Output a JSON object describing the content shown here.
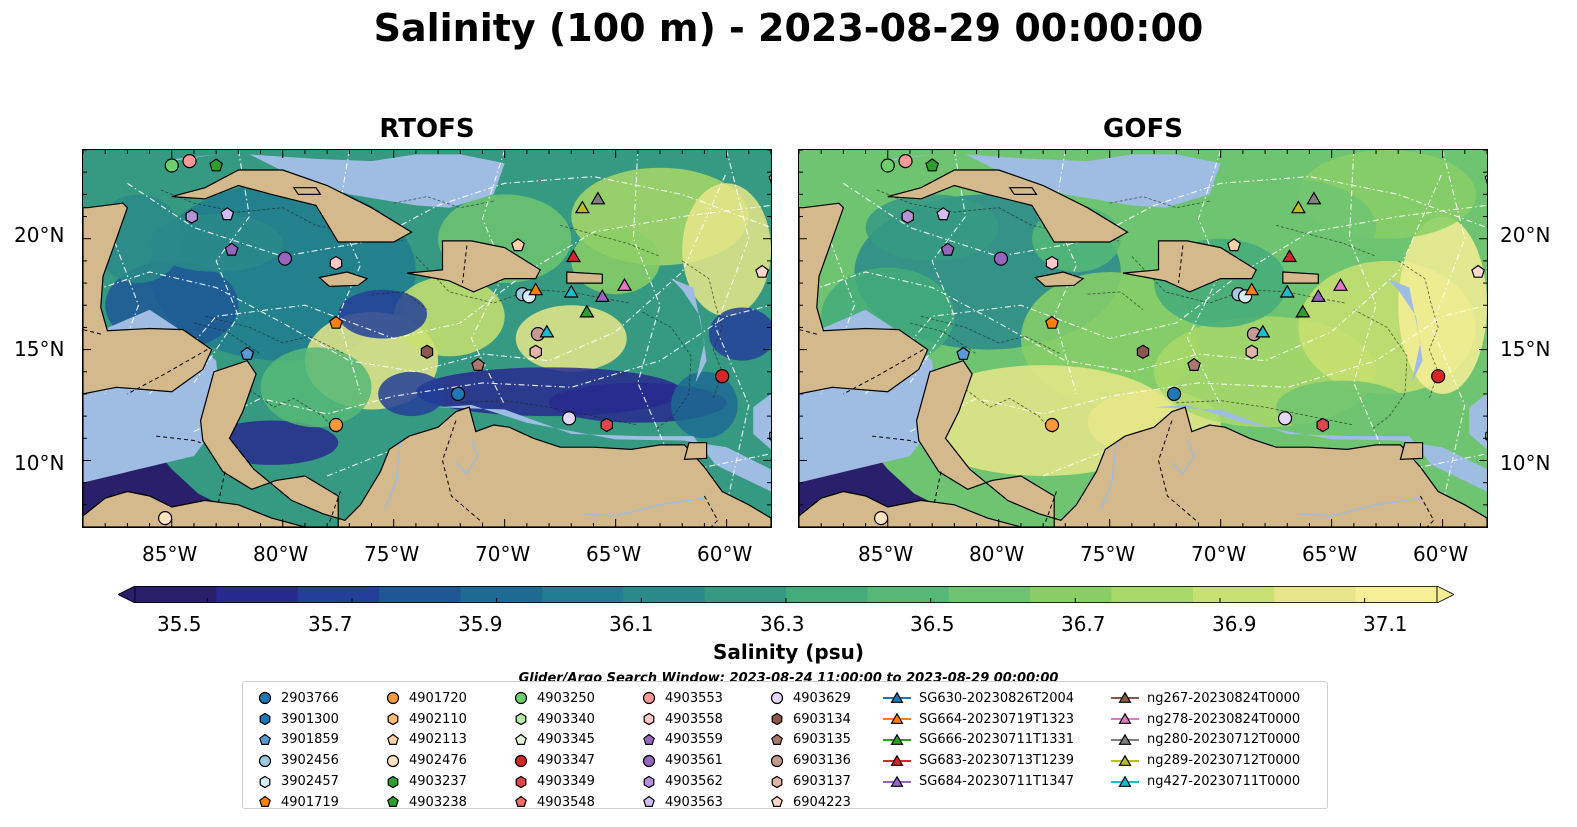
{
  "title": "Salinity (100 m) - 2023-08-29 00:00:00",
  "panels": [
    {
      "title": "RTOFS"
    },
    {
      "title": "GOFS"
    }
  ],
  "map_extent": {
    "lon_min": -89,
    "lon_max": -58,
    "lat_min": 7,
    "lat_max": 24
  },
  "lat_ticks": [
    "20°N",
    "15°N",
    "10°N"
  ],
  "lon_ticks": [
    "85°W",
    "80°W",
    "75°W",
    "70°W",
    "65°W",
    "60°W"
  ],
  "colorbar": {
    "label": "Salinity (psu)",
    "min": 35.4,
    "max": 37.2,
    "extend": "both",
    "ticks": [
      "35.5",
      "35.7",
      "35.9",
      "36.1",
      "36.3",
      "36.5",
      "36.7",
      "36.9",
      "37.1"
    ],
    "colors": [
      "#2a1f6b",
      "#282a8f",
      "#233f99",
      "#1f5796",
      "#1d6a93",
      "#1f7d8f",
      "#2a8a8a",
      "#369a82",
      "#44ab7a",
      "#56b877",
      "#6ec471",
      "#8acf66",
      "#a8d868",
      "#c8e070",
      "#e6e688",
      "#f6ef95"
    ]
  },
  "colors": {
    "land": "#d3b98b",
    "shelf": "#9fbce3",
    "deep_low": "#2a1f6b"
  },
  "search_window": "Glider/Argo Search Window: 2023-08-24 11:00:00 to 2023-08-29 00:00:00",
  "legend": {
    "columns": [
      [
        {
          "label": "2903766",
          "marker": "circle",
          "color": "#1f77b4"
        },
        {
          "label": "3901300",
          "marker": "hexagon",
          "color": "#1f77b4"
        },
        {
          "label": "3901859",
          "marker": "pentagon",
          "color": "#5b9bd5"
        },
        {
          "label": "3902456",
          "marker": "circle",
          "color": "#9ecae1"
        },
        {
          "label": "3902457",
          "marker": "hexagon",
          "color": "#d6ecf6"
        },
        {
          "label": "4901719",
          "marker": "pentagon",
          "color": "#ff7f0e"
        }
      ],
      [
        {
          "label": "4901720",
          "marker": "circle",
          "color": "#ff9b3d"
        },
        {
          "label": "4902110",
          "marker": "hexagon",
          "color": "#ffbb78"
        },
        {
          "label": "4902113",
          "marker": "pentagon",
          "color": "#ffd2a8"
        },
        {
          "label": "4902476",
          "marker": "circle",
          "color": "#ffe4c4"
        },
        {
          "label": "4903237",
          "marker": "hexagon",
          "color": "#2ca02c"
        },
        {
          "label": "4903238",
          "marker": "pentagon",
          "color": "#2ca02c"
        }
      ],
      [
        {
          "label": "4903250",
          "marker": "circle",
          "color": "#6fcf6f"
        },
        {
          "label": "4903340",
          "marker": "hexagon",
          "color": "#b6e8a8"
        },
        {
          "label": "4903345",
          "marker": "pentagon",
          "color": "#e2f7d9"
        },
        {
          "label": "4903347",
          "marker": "circle",
          "color": "#d62728"
        },
        {
          "label": "4903349",
          "marker": "hexagon",
          "color": "#e0474c"
        },
        {
          "label": "4903548",
          "marker": "pentagon",
          "color": "#f06b70"
        }
      ],
      [
        {
          "label": "4903553",
          "marker": "circle",
          "color": "#ff9896"
        },
        {
          "label": "4903558",
          "marker": "hexagon",
          "color": "#ffc8c8"
        },
        {
          "label": "4903559",
          "marker": "pentagon",
          "color": "#9467bd"
        },
        {
          "label": "4903561",
          "marker": "circle",
          "color": "#9467bd"
        },
        {
          "label": "4903562",
          "marker": "hexagon",
          "color": "#b593d6"
        },
        {
          "label": "4903563",
          "marker": "pentagon",
          "color": "#d2bdf0"
        }
      ],
      [
        {
          "label": "4903629",
          "marker": "circle",
          "color": "#e6d6fa"
        },
        {
          "label": "6903134",
          "marker": "hexagon",
          "color": "#8c564b"
        },
        {
          "label": "6903135",
          "marker": "pentagon",
          "color": "#a9786b"
        },
        {
          "label": "6903136",
          "marker": "circle",
          "color": "#c49c94"
        },
        {
          "label": "6903137",
          "marker": "hexagon",
          "color": "#e3b5a8"
        },
        {
          "label": "6904223",
          "marker": "pentagon",
          "color": "#fdd8cc"
        }
      ],
      [
        {
          "label": "SG630-20230826T2004",
          "marker": "triangle",
          "color": "#1f77b4"
        },
        {
          "label": "SG664-20230719T1323",
          "marker": "triangle",
          "color": "#ff7f0e"
        },
        {
          "label": "SG666-20230711T1331",
          "marker": "triangle",
          "color": "#2ca02c"
        },
        {
          "label": "SG683-20230713T1239",
          "marker": "triangle",
          "color": "#d62728"
        },
        {
          "label": "SG684-20230711T1347",
          "marker": "triangle",
          "color": "#9467bd"
        }
      ],
      [
        {
          "label": "ng267-20230824T0000",
          "marker": "triangle",
          "color": "#8c564b"
        },
        {
          "label": "ng278-20230824T0000",
          "marker": "triangle",
          "color": "#e377c2"
        },
        {
          "label": "ng280-20230712T0000",
          "marker": "triangle",
          "color": "#7f7f7f"
        },
        {
          "label": "ng289-20230712T0000",
          "marker": "triangle",
          "color": "#bcbd22"
        },
        {
          "label": "ng427-20230711T0000",
          "marker": "triangle",
          "color": "#17becf"
        }
      ]
    ]
  },
  "observations": [
    {
      "lon": -85,
      "lat": 23.3,
      "marker": "circle",
      "color": "#6fcf6f"
    },
    {
      "lon": -84.2,
      "lat": 23.5,
      "marker": "circle",
      "color": "#ff9896"
    },
    {
      "lon": -83,
      "lat": 23.3,
      "marker": "pentagon",
      "color": "#2ca02c"
    },
    {
      "lon": -84.1,
      "lat": 21,
      "marker": "hexagon",
      "color": "#b593d6"
    },
    {
      "lon": -82.5,
      "lat": 21.1,
      "marker": "pentagon",
      "color": "#d2bdf0"
    },
    {
      "lon": -82.3,
      "lat": 19.5,
      "marker": "pentagon",
      "color": "#9467bd"
    },
    {
      "lon": -79.9,
      "lat": 19.1,
      "marker": "circle",
      "color": "#9467bd"
    },
    {
      "lon": -77.6,
      "lat": 18.9,
      "marker": "hexagon",
      "color": "#ffc8c8"
    },
    {
      "lon": -69.4,
      "lat": 19.7,
      "marker": "pentagon",
      "color": "#ffd2a8"
    },
    {
      "lon": -69.2,
      "lat": 17.5,
      "marker": "circle",
      "color": "#9ecae1"
    },
    {
      "lon": -68.9,
      "lat": 17.4,
      "marker": "circle",
      "color": "#d6ecf6"
    },
    {
      "lon": -77.6,
      "lat": 16.2,
      "marker": "pentagon",
      "color": "#ff7f0e"
    },
    {
      "lon": -81.6,
      "lat": 14.8,
      "marker": "pentagon",
      "color": "#5b9bd5"
    },
    {
      "lon": -73.5,
      "lat": 14.9,
      "marker": "hexagon",
      "color": "#8c564b"
    },
    {
      "lon": -71.2,
      "lat": 14.3,
      "marker": "pentagon",
      "color": "#a9786b"
    },
    {
      "lon": -68.5,
      "lat": 15.7,
      "marker": "circle",
      "color": "#c49c94"
    },
    {
      "lon": -68.6,
      "lat": 14.9,
      "marker": "hexagon",
      "color": "#e3b5a8"
    },
    {
      "lon": -72.1,
      "lat": 13,
      "marker": "circle",
      "color": "#1f77b4"
    },
    {
      "lon": -77.6,
      "lat": 11.6,
      "marker": "circle",
      "color": "#ff9b3d"
    },
    {
      "lon": -67.1,
      "lat": 11.9,
      "marker": "circle",
      "color": "#e6d6fa"
    },
    {
      "lon": -65.4,
      "lat": 11.6,
      "marker": "hexagon",
      "color": "#e0474c"
    },
    {
      "lon": -60.2,
      "lat": 13.8,
      "marker": "circle",
      "color": "#d62728"
    },
    {
      "lon": -57.8,
      "lat": 11.1,
      "marker": "hexagon",
      "color": "#b6e8a8"
    },
    {
      "lon": -57.8,
      "lat": 22.7,
      "marker": "pentagon",
      "color": "#e2f7d9"
    },
    {
      "lon": -58.4,
      "lat": 18.5,
      "marker": "pentagon",
      "color": "#fdd8cc"
    },
    {
      "lon": -85.3,
      "lat": 7.4,
      "marker": "circle",
      "color": "#ffe4c4"
    },
    {
      "lon": -66.5,
      "lat": 21.4,
      "marker": "triangle",
      "color": "#bcbd22"
    },
    {
      "lon": -65.8,
      "lat": 21.8,
      "marker": "triangle",
      "color": "#7f7f7f"
    },
    {
      "lon": -66.9,
      "lat": 19.2,
      "marker": "triangle",
      "color": "#d62728"
    },
    {
      "lon": -68.6,
      "lat": 17.7,
      "marker": "triangle",
      "color": "#ff7f0e"
    },
    {
      "lon": -67,
      "lat": 17.6,
      "marker": "triangle",
      "color": "#17becf"
    },
    {
      "lon": -65.6,
      "lat": 17.4,
      "marker": "triangle",
      "color": "#9467bd"
    },
    {
      "lon": -64.6,
      "lat": 17.9,
      "marker": "triangle",
      "color": "#e377c2"
    },
    {
      "lon": -66.3,
      "lat": 16.7,
      "marker": "triangle",
      "color": "#2ca02c"
    },
    {
      "lon": -68.1,
      "lat": 15.8,
      "marker": "triangle",
      "color": "#17becf"
    }
  ]
}
